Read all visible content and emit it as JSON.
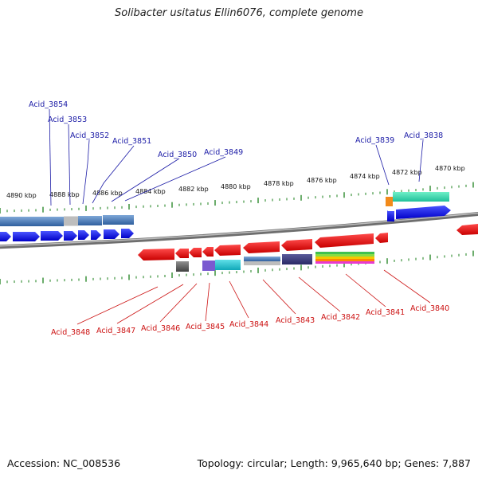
{
  "header": {
    "title": "Solibacter usitatus Ellin6076, complete genome"
  },
  "footer": {
    "accession": "Accession: NC_008536",
    "summary": "Topology: circular; Length: 9,965,640 bp; Genes: 7,887"
  },
  "colors": {
    "top_label": "#1a1aa6",
    "bottom_label": "#cc1111",
    "tick": "#2d8a2d",
    "backbone": "#8a8a8a"
  },
  "ticks": [
    "4890 kbp",
    "4888 kbp",
    "4886 kbp",
    "4884 kbp",
    "4882 kbp",
    "4880 kbp",
    "4878 kbp",
    "4876 kbp",
    "4874 kbp",
    "4872 kbp",
    "4870 kbp"
  ],
  "top_genes": [
    "Acid_3854",
    "Acid_3853",
    "Acid_3852",
    "Acid_3851",
    "Acid_3850",
    "Acid_3849",
    "Acid_3839",
    "Acid_3838"
  ],
  "bottom_genes": [
    "Acid_3848",
    "Acid_3847",
    "Acid_3846",
    "Acid_3845",
    "Acid_3844",
    "Acid_3843",
    "Acid_3842",
    "Acid_3841",
    "Acid_3840"
  ]
}
